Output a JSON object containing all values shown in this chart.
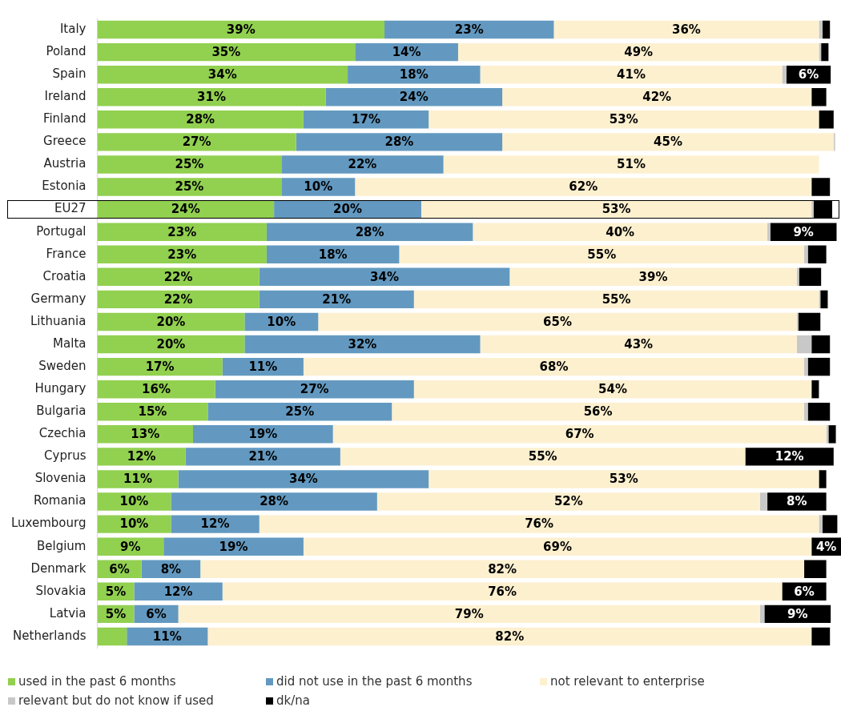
{
  "chart_data": {
    "type": "bar",
    "orientation": "horizontal",
    "stacked": true,
    "legend": "bottom",
    "grid": false,
    "categories": [
      "Italy",
      "Poland",
      "Spain",
      "Ireland",
      "Finland",
      "Greece",
      "Austria",
      "Estonia",
      "EU27",
      "Portugal",
      "France",
      "Croatia",
      "Germany",
      "Lithuania",
      "Malta",
      "Sweden",
      "Hungary",
      "Bulgaria",
      "Czechia",
      "Cyprus",
      "Slovenia",
      "Romania",
      "Luxembourg",
      "Belgium",
      "Denmark",
      "Slovakia",
      "Latvia",
      "Netherlands"
    ],
    "series": [
      {
        "name": "used in the past 6 months",
        "color": "#92d050",
        "values": [
          39,
          35,
          34,
          31,
          28,
          27,
          25,
          25,
          24,
          23,
          23,
          22,
          22,
          20,
          20,
          17,
          16,
          15,
          13,
          12,
          11,
          10,
          10,
          9,
          6,
          5,
          5,
          4
        ],
        "value_labels": [
          "39%",
          "35%",
          "34%",
          "31%",
          "28%",
          "27%",
          "25%",
          "25%",
          "24%",
          "23%",
          "23%",
          "22%",
          "22%",
          "20%",
          "20%",
          "17%",
          "16%",
          "15%",
          "13%",
          "12%",
          "11%",
          "10%",
          "10%",
          "9%",
          "6%",
          "5%",
          "5%",
          null
        ]
      },
      {
        "name": "did not use in the past 6 months",
        "color": "#6399c0",
        "values": [
          23,
          14,
          18,
          24,
          17,
          28,
          22,
          10,
          20,
          28,
          18,
          34,
          21,
          10,
          32,
          11,
          27,
          25,
          19,
          21,
          34,
          28,
          12,
          19,
          8,
          12,
          6,
          11
        ],
        "value_labels": [
          "23%",
          "14%",
          "18%",
          "24%",
          "17%",
          "28%",
          "22%",
          "10%",
          "20%",
          "28%",
          "18%",
          "34%",
          "21%",
          "10%",
          "32%",
          "11%",
          "27%",
          "25%",
          "19%",
          "21%",
          "34%",
          "28%",
          "12%",
          "19%",
          "8%",
          "12%",
          "6%",
          "11%"
        ]
      },
      {
        "name": "not relevant to enterprise",
        "color": "#fdf0cf",
        "values": [
          36,
          49,
          41,
          42,
          53,
          45,
          51,
          62,
          53,
          40,
          55,
          39,
          55,
          65,
          43,
          68,
          54,
          56,
          67,
          55,
          53,
          52,
          76,
          69,
          82,
          76,
          79,
          82
        ],
        "value_labels": [
          "36%",
          "49%",
          "41%",
          "42%",
          "53%",
          "45%",
          "51%",
          "62%",
          "53%",
          "40%",
          "55%",
          "39%",
          "55%",
          "65%",
          "43%",
          "68%",
          "54%",
          "56%",
          "67%",
          "55%",
          "53%",
          "52%",
          "76%",
          "69%",
          "82%",
          "76%",
          "79%",
          "82%"
        ]
      },
      {
        "name": "relevant but do not know if used",
        "color": "#c8c8c8",
        "values": [
          0.5,
          0.3,
          0.6,
          0,
          0,
          0.2,
          0,
          0,
          0.3,
          0.4,
          0.5,
          0.3,
          0.2,
          0.2,
          2,
          0.5,
          0,
          0.5,
          0.3,
          0,
          0,
          1,
          0.5,
          0,
          0,
          0,
          0.6,
          0
        ],
        "value_labels": [
          null,
          null,
          null,
          null,
          null,
          null,
          null,
          null,
          null,
          null,
          null,
          null,
          null,
          null,
          null,
          null,
          null,
          null,
          null,
          null,
          null,
          null,
          null,
          null,
          null,
          null,
          null,
          null
        ]
      },
      {
        "name": "dk/na",
        "color": "#000000",
        "values": [
          1,
          1,
          6,
          2,
          2,
          0,
          0,
          2.5,
          2.5,
          9,
          2.5,
          3,
          1,
          3,
          2.5,
          3,
          1,
          3,
          1,
          12,
          1,
          8,
          2,
          4,
          3,
          6,
          9,
          2.5
        ],
        "value_labels": [
          null,
          null,
          "6%",
          null,
          null,
          null,
          null,
          null,
          null,
          "9%",
          null,
          null,
          null,
          null,
          null,
          null,
          null,
          null,
          null,
          "12%",
          null,
          "8%",
          null,
          "4%",
          null,
          "6%",
          "9%",
          null
        ]
      }
    ]
  }
}
